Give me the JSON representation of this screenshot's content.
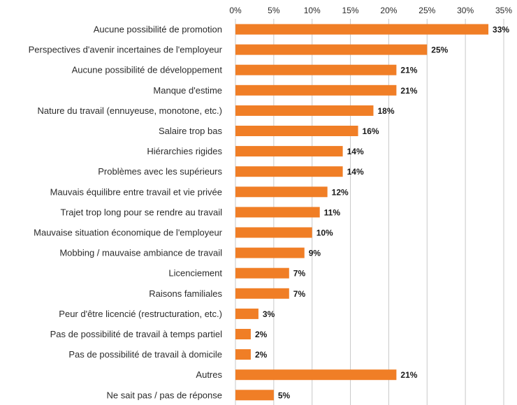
{
  "chart_data": {
    "type": "bar",
    "orientation": "horizontal",
    "categories": [
      "Aucune possibilité de promotion",
      "Perspectives d'avenir incertaines de l'employeur",
      "Aucune possibilité de développement",
      "Manque d'estime",
      "Nature du travail (ennuyeuse, monotone, etc.)",
      "Salaire trop bas",
      "Hiérarchies rigides",
      "Problèmes avec les supérieurs",
      "Mauvais équilibre entre travail et vie privée",
      "Trajet trop long pour se rendre au travail",
      "Mauvaise situation économique de l'employeur",
      "Mobbing / mauvaise ambiance de travail",
      "Licenciement",
      "Raisons familiales",
      "Peur d'être licencié (restructuration, etc.)",
      "Pas de possibilité de travail à temps partiel",
      "Pas de possibilité de travail à domicile",
      "Autres",
      "Ne sait pas / pas de réponse"
    ],
    "values": [
      33,
      25,
      21,
      21,
      18,
      16,
      14,
      14,
      12,
      11,
      10,
      9,
      7,
      7,
      3,
      2,
      2,
      21,
      5
    ],
    "value_labels": [
      "33%",
      "25%",
      "21%",
      "21%",
      "18%",
      "16%",
      "14%",
      "14%",
      "12%",
      "11%",
      "10%",
      "9%",
      "7%",
      "7%",
      "3%",
      "2%",
      "2%",
      "21%",
      "5%"
    ],
    "xlim": [
      0,
      35
    ],
    "xticks": [
      0,
      5,
      10,
      15,
      20,
      25,
      30,
      35
    ],
    "xtick_labels": [
      "0%",
      "5%",
      "10%",
      "15%",
      "20%",
      "25%",
      "30%",
      "35%"
    ],
    "axis_position": "top",
    "grid": true,
    "legend": "none",
    "title": "",
    "xlabel": "",
    "ylabel": "",
    "bar_color": "#f07e26",
    "grid_color": "#c8c8c8"
  }
}
